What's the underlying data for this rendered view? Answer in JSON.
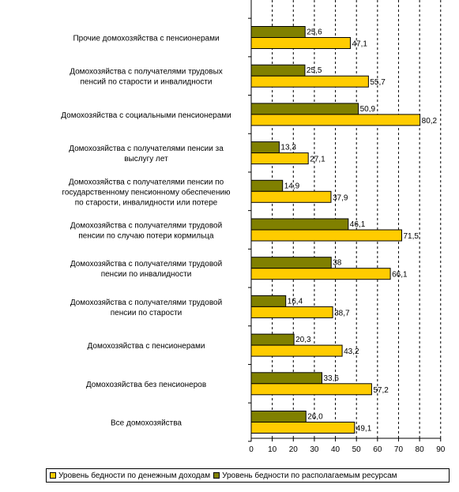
{
  "colors": {
    "monetary": "#FFCC00",
    "resources": "#808000",
    "axis": "#000000",
    "grid": "#000000"
  },
  "chart_data": {
    "type": "bar",
    "orientation": "horizontal",
    "categories": [
      "Прочие домохозяйства с пенсионерами",
      "Домохозяйства с получателями трудовых пенсий по старости и инвалидности",
      "Домохозяйства с социальными пенсионерами",
      "Домохозяйства с получателями пенсии за выслугу лет",
      "Домохозяйства с получателями пенсии по государственному пенсионному обеспечению по старости, инвалидности или потере",
      "Домохозяйства с получателями трудовой пенсии по случаю потери кормильца",
      "Домохозяйства с получателями трудовой пенсии по инвалидности",
      "Домохозяйства с получателями трудовой пенсии по старости",
      "Домохозяйства с пенсионерами",
      "Домохозяйства без пенсионеров",
      "Все домохозяйства"
    ],
    "category_lines": [
      [
        "Прочие домохозяйства с пенсионерами"
      ],
      [
        "Домохозяйства с получателями трудовых",
        "пенсий по старости и инвалидности"
      ],
      [
        "Домохозяйства с социальными пенсионерами"
      ],
      [
        "Домохозяйства с получателями пенсии за",
        "выслугу лет"
      ],
      [
        "Домохозяйства с получателями пенсии по",
        "государственному пенсионному обеспечению",
        "по старости, инвалидности или потере"
      ],
      [
        "Домохозяйства с получателями трудовой",
        "пенсии по случаю потери кормильца"
      ],
      [
        "Домохозяйства с получателями трудовой",
        "пенсии по инвалидности"
      ],
      [
        "Домохозяйства с получателями трудовой",
        "пенсии по старости"
      ],
      [
        "Домохозяйства с пенсионерами"
      ],
      [
        "Домохозяйства без пенсионеров"
      ],
      [
        "Все домохозяйства"
      ]
    ],
    "series": [
      {
        "name": "Уровень бедности по располагаемым ресурсам",
        "values": [
          25.6,
          25.5,
          50.9,
          13.3,
          14.9,
          46.1,
          38,
          16.4,
          20.3,
          33.6,
          26.0
        ],
        "labels": [
          "25,6",
          "25,5",
          "50,9",
          "13,3",
          "14,9",
          "46,1",
          "38",
          "16,4",
          "20,3",
          "33,6",
          "26,0"
        ]
      },
      {
        "name": "Уровень бедности по денежным доходам",
        "values": [
          47.1,
          55.7,
          80.2,
          27.1,
          37.9,
          71.5,
          66.1,
          38.7,
          43.2,
          57.2,
          49.1
        ],
        "labels": [
          "47,1",
          "55,7",
          "80,2",
          "27,1",
          "37,9",
          "71,5",
          "66,1",
          "38,7",
          "43,2",
          "57,2",
          "49,1"
        ]
      }
    ],
    "xlim": [
      0,
      90
    ],
    "xticks": [
      0,
      10,
      20,
      30,
      40,
      50,
      60,
      70,
      80,
      90
    ],
    "grid": "vertical dashed",
    "legend_position": "bottom",
    "legend": [
      "Уровень бедности по денежным доходам",
      "Уровень бедности по располагаемым ресурсам"
    ]
  }
}
